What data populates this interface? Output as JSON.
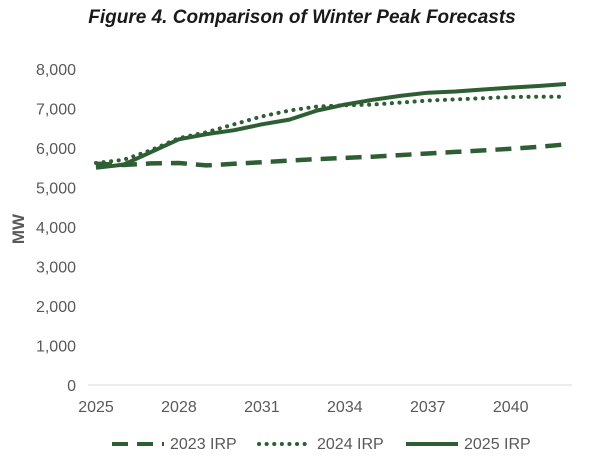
{
  "chart_data": {
    "type": "line",
    "title": "Figure 4. Comparison of Winter Peak Forecasts",
    "xlabel": "",
    "ylabel": "MW",
    "x": [
      2025,
      2026,
      2027,
      2028,
      2029,
      2030,
      2031,
      2032,
      2033,
      2034,
      2035,
      2036,
      2037,
      2038,
      2039,
      2040,
      2041,
      2042
    ],
    "xticks": [
      "2025",
      "2028",
      "2031",
      "2034",
      "2037",
      "2040"
    ],
    "yticks": [
      "0",
      "1,000",
      "2,000",
      "3,000",
      "4,000",
      "5,000",
      "6,000",
      "7,000",
      "8,000"
    ],
    "ylim": [
      0,
      8000
    ],
    "grid": false,
    "legend": "bottom",
    "series": [
      {
        "name": "2023 IRP",
        "style": "dashed",
        "color": "#2e5e34",
        "values": [
          5600,
          5570,
          5610,
          5620,
          5560,
          5600,
          5640,
          5680,
          5720,
          5750,
          5780,
          5820,
          5860,
          5900,
          5940,
          5980,
          6030,
          6090
        ]
      },
      {
        "name": "2024 IRP",
        "style": "dotted",
        "color": "#2e5e34",
        "values": [
          5620,
          5700,
          5950,
          6250,
          6400,
          6600,
          6800,
          6950,
          7050,
          7080,
          7100,
          7150,
          7200,
          7230,
          7260,
          7290,
          7300,
          7300
        ]
      },
      {
        "name": "2025 IRP",
        "style": "solid",
        "color": "#2e5e34",
        "values": [
          5500,
          5580,
          5900,
          6220,
          6350,
          6450,
          6600,
          6720,
          6950,
          7100,
          7220,
          7320,
          7400,
          7430,
          7480,
          7530,
          7570,
          7620
        ]
      }
    ]
  }
}
